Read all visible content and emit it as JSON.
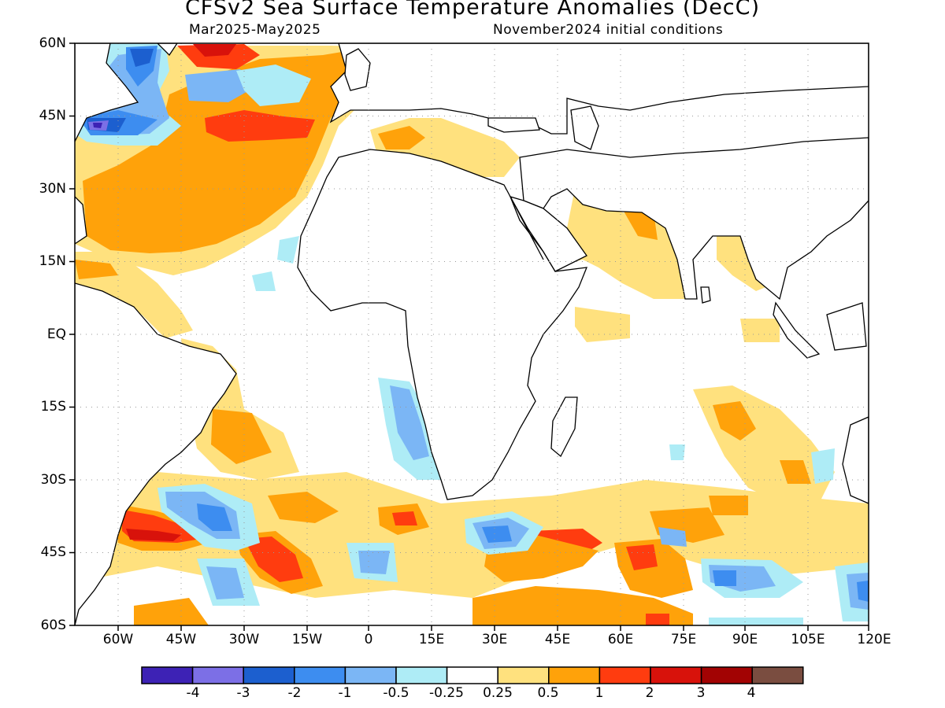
{
  "title": "CFSv2 Sea Surface Temperature Anomalies (DecC)",
  "subtitle_left": "Mar2025-May2025",
  "subtitle_right": "November2024 initial conditions",
  "lat_labels": [
    "60N",
    "45N",
    "30N",
    "15N",
    "EQ",
    "15S",
    "30S",
    "45S",
    "60S"
  ],
  "lon_labels": [
    "60W",
    "45W",
    "30W",
    "15W",
    "0",
    "15E",
    "30E",
    "45E",
    "60E",
    "75E",
    "90E",
    "105E",
    "120E"
  ],
  "colorbar": {
    "colors": [
      "#3d22b5",
      "#7c6fe6",
      "#1c5fcf",
      "#3d8df0",
      "#7bb6f5",
      "#aeecf6",
      "#ffffff",
      "#ffe17e",
      "#ffa20a",
      "#ff3c0f",
      "#d8120b",
      "#a20303",
      "#7a4d40"
    ],
    "labels": [
      "-4",
      "-3",
      "-2",
      "-1",
      "-0.5",
      "-0.25",
      "0.25",
      "0.5",
      "1",
      "2",
      "3",
      "4"
    ]
  }
}
